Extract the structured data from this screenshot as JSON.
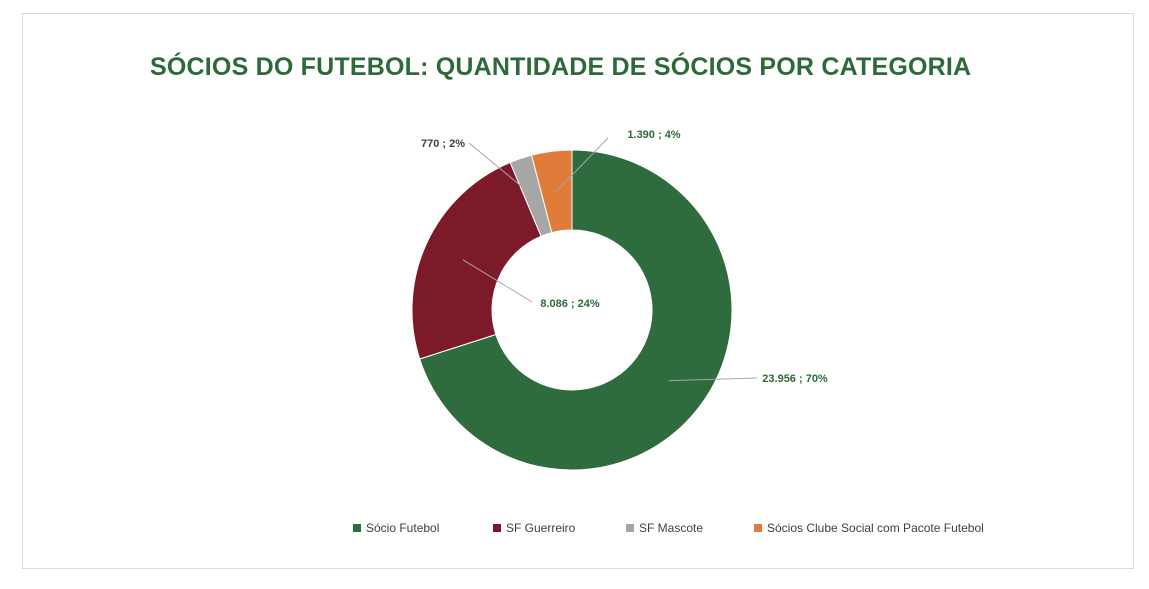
{
  "chart_data": {
    "type": "pie",
    "subtype": "donut",
    "title": "SÓCIOS DO FUTEBOL: QUANTIDADE DE SÓCIOS POR CATEGORIA",
    "categories": [
      "Sócio Futebol",
      "SF Guerreiro",
      "SF Mascote",
      "Sócios Clube Social com Pacote Futebol"
    ],
    "values": [
      23956,
      8086,
      770,
      1390
    ],
    "percentages": [
      70,
      24,
      2,
      4
    ],
    "data_labels": [
      "23.956 ; 70%",
      "8.086 ; 24%",
      "770 ; 2%",
      "1.390 ; 4%"
    ],
    "colors": [
      "#2e6b3d",
      "#7d1a2a",
      "#a6a6a6",
      "#e07b39"
    ],
    "legend_position": "bottom"
  }
}
